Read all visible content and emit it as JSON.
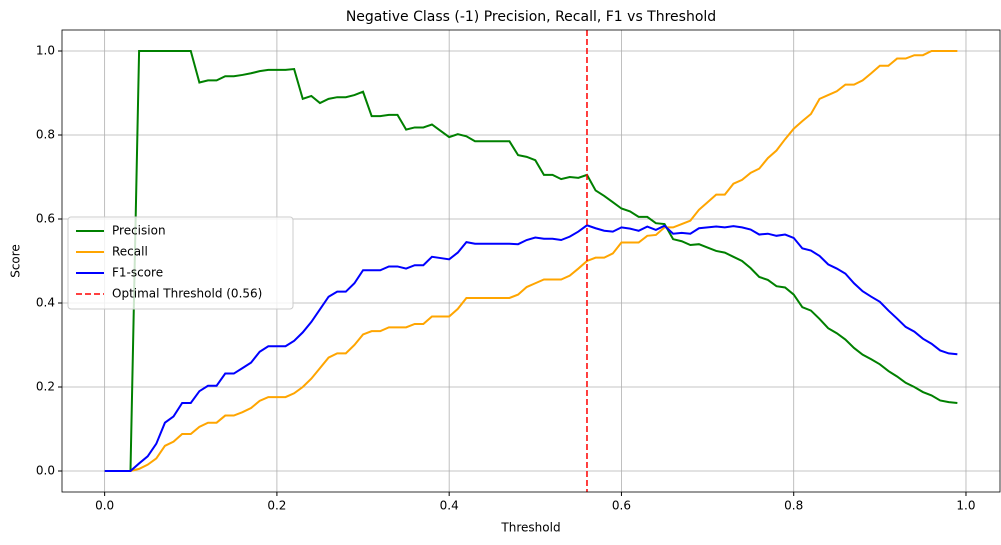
{
  "chart_data": {
    "type": "line",
    "title": "Negative Class (-1) Precision, Recall, F1 vs Threshold",
    "x_label": "Threshold",
    "y_label": "Score",
    "x": [
      0,
      0.01,
      0.02,
      0.03,
      0.04,
      0.05,
      0.06,
      0.07,
      0.08,
      0.09,
      0.1,
      0.11,
      0.12,
      0.13,
      0.14,
      0.15,
      0.16,
      0.17,
      0.18,
      0.19,
      0.2,
      0.21,
      0.22,
      0.23,
      0.24,
      0.25,
      0.26,
      0.27,
      0.28,
      0.29,
      0.3,
      0.31,
      0.32,
      0.33,
      0.34,
      0.35,
      0.36,
      0.37,
      0.38,
      0.39,
      0.4,
      0.41,
      0.42,
      0.43,
      0.44,
      0.45,
      0.46,
      0.47,
      0.48,
      0.49,
      0.5,
      0.51,
      0.52,
      0.53,
      0.54,
      0.55,
      0.56,
      0.57,
      0.58,
      0.59,
      0.6,
      0.61,
      0.62,
      0.63,
      0.64,
      0.65,
      0.66,
      0.67,
      0.68,
      0.69,
      0.7,
      0.71,
      0.72,
      0.73,
      0.74,
      0.75,
      0.76,
      0.77,
      0.78,
      0.79,
      0.8,
      0.81,
      0.82,
      0.83,
      0.84,
      0.85,
      0.86,
      0.87,
      0.88,
      0.89,
      0.9,
      0.91,
      0.92,
      0.93,
      0.94,
      0.95,
      0.96,
      0.97,
      0.98,
      0.99
    ],
    "series": [
      {
        "name": "Precision",
        "color": "green",
        "values": [
          0,
          0,
          0,
          0,
          1.0,
          1.0,
          1.0,
          1.0,
          1.0,
          1.0,
          1.0,
          0.925,
          0.93,
          0.93,
          0.94,
          0.94,
          0.943,
          0.947,
          0.952,
          0.955,
          0.955,
          0.955,
          0.957,
          0.886,
          0.893,
          0.876,
          0.886,
          0.89,
          0.89,
          0.895,
          0.903,
          0.845,
          0.845,
          0.848,
          0.848,
          0.813,
          0.818,
          0.818,
          0.825,
          0.81,
          0.795,
          0.802,
          0.797,
          0.785,
          0.785,
          0.785,
          0.785,
          0.785,
          0.752,
          0.748,
          0.74,
          0.705,
          0.705,
          0.695,
          0.7,
          0.698,
          0.705,
          0.668,
          0.655,
          0.64,
          0.625,
          0.618,
          0.605,
          0.605,
          0.59,
          0.588,
          0.552,
          0.547,
          0.538,
          0.54,
          0.532,
          0.524,
          0.52,
          0.51,
          0.5,
          0.483,
          0.462,
          0.455,
          0.44,
          0.437,
          0.42,
          0.39,
          0.382,
          0.362,
          0.34,
          0.328,
          0.313,
          0.293,
          0.277,
          0.266,
          0.254,
          0.238,
          0.225,
          0.21,
          0.2,
          0.188,
          0.18,
          0.168,
          0.164,
          0.162
        ]
      },
      {
        "name": "Recall",
        "color": "orange",
        "values": [
          0,
          0,
          0,
          0,
          0.005,
          0.015,
          0.03,
          0.06,
          0.07,
          0.088,
          0.088,
          0.105,
          0.115,
          0.115,
          0.132,
          0.132,
          0.14,
          0.15,
          0.167,
          0.176,
          0.176,
          0.176,
          0.185,
          0.2,
          0.22,
          0.245,
          0.27,
          0.28,
          0.28,
          0.3,
          0.325,
          0.333,
          0.333,
          0.342,
          0.342,
          0.342,
          0.35,
          0.35,
          0.368,
          0.368,
          0.368,
          0.386,
          0.412,
          0.412,
          0.412,
          0.412,
          0.412,
          0.412,
          0.42,
          0.438,
          0.447,
          0.456,
          0.456,
          0.456,
          0.465,
          0.482,
          0.5,
          0.508,
          0.508,
          0.518,
          0.544,
          0.544,
          0.544,
          0.56,
          0.562,
          0.58,
          0.58,
          0.588,
          0.596,
          0.622,
          0.64,
          0.658,
          0.658,
          0.684,
          0.693,
          0.71,
          0.72,
          0.745,
          0.763,
          0.79,
          0.815,
          0.833,
          0.85,
          0.886,
          0.895,
          0.904,
          0.92,
          0.92,
          0.93,
          0.947,
          0.965,
          0.965,
          0.982,
          0.982,
          0.99,
          0.99,
          1.0,
          1.0,
          1.0,
          1.0
        ]
      },
      {
        "name": "F1-score",
        "color": "blue",
        "values": [
          0,
          0,
          0,
          0,
          0.018,
          0.035,
          0.065,
          0.115,
          0.13,
          0.162,
          0.162,
          0.19,
          0.203,
          0.203,
          0.232,
          0.232,
          0.245,
          0.258,
          0.284,
          0.297,
          0.297,
          0.297,
          0.31,
          0.33,
          0.355,
          0.385,
          0.415,
          0.427,
          0.427,
          0.447,
          0.478,
          0.478,
          0.478,
          0.487,
          0.487,
          0.482,
          0.49,
          0.49,
          0.51,
          0.507,
          0.504,
          0.52,
          0.545,
          0.541,
          0.541,
          0.541,
          0.541,
          0.541,
          0.54,
          0.55,
          0.556,
          0.553,
          0.553,
          0.55,
          0.558,
          0.57,
          0.585,
          0.578,
          0.572,
          0.57,
          0.58,
          0.577,
          0.572,
          0.582,
          0.574,
          0.584,
          0.565,
          0.567,
          0.565,
          0.578,
          0.58,
          0.582,
          0.58,
          0.583,
          0.58,
          0.575,
          0.563,
          0.565,
          0.56,
          0.563,
          0.555,
          0.53,
          0.525,
          0.512,
          0.492,
          0.482,
          0.47,
          0.447,
          0.428,
          0.415,
          0.403,
          0.382,
          0.363,
          0.343,
          0.332,
          0.315,
          0.303,
          0.287,
          0.28,
          0.278
        ]
      }
    ],
    "vlines": [
      {
        "name": "Optimal Threshold (0.56)",
        "x": 0.56,
        "color": "red"
      }
    ],
    "xlim": [
      -0.0495,
      1.0395
    ],
    "xticks": [
      {
        "value": 0,
        "label": "0.0"
      },
      0.2,
      0.4,
      0.6,
      0.8,
      {
        "value": 1,
        "label": "1.0"
      }
    ],
    "ylim": [
      -0.05,
      1.05
    ],
    "yticks": [
      {
        "value": 0,
        "label": "0.0"
      },
      0.2,
      0.4,
      0.6,
      0.8,
      {
        "value": 1,
        "label": "1.0"
      }
    ],
    "grid": true,
    "legend": "center left"
  }
}
